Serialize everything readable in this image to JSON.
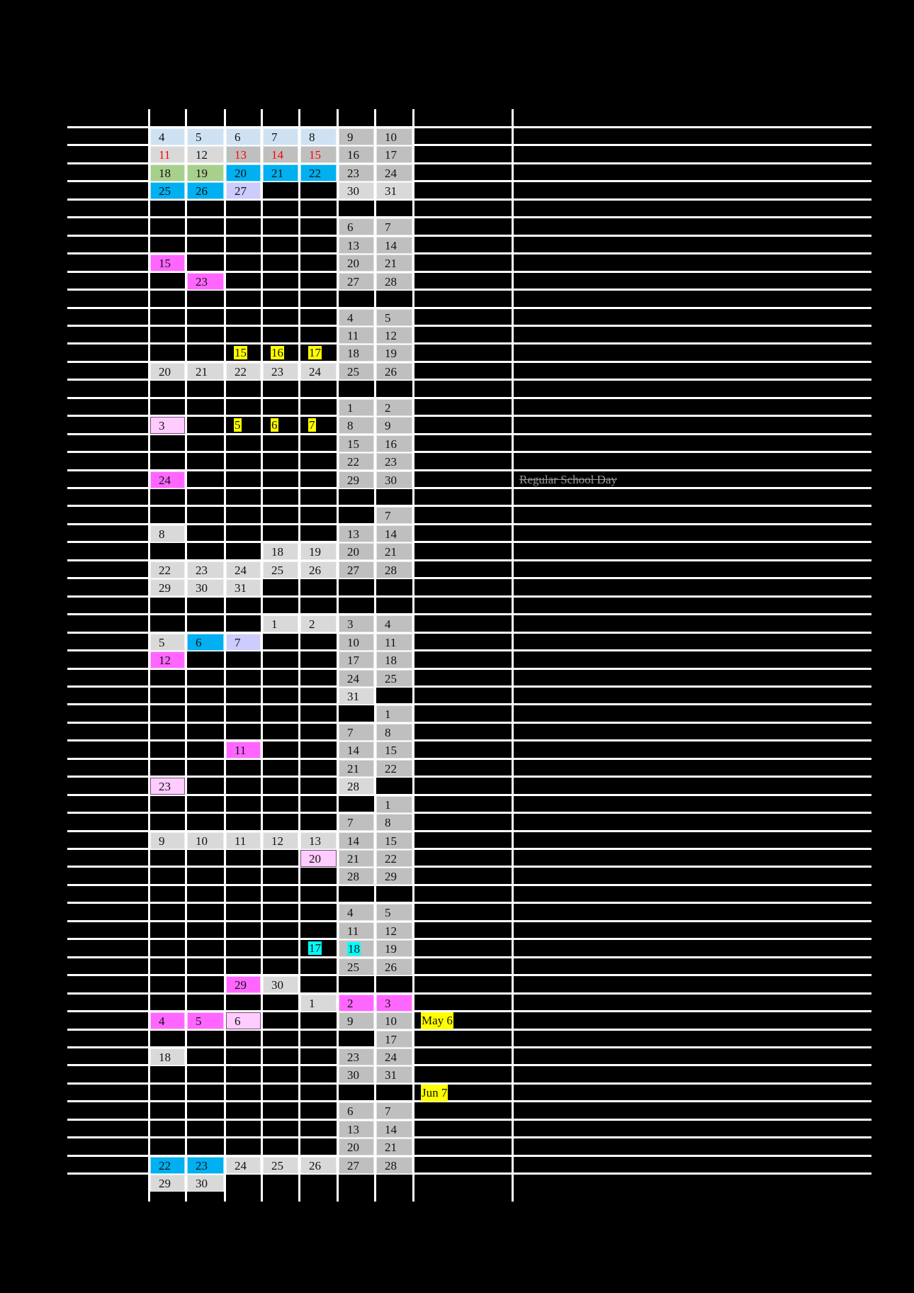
{
  "calendar": {
    "colors": {
      "lightblue": "#cfe2f3",
      "gray": "#bfbfbf",
      "lightgray": "#d9d9d9",
      "green": "#a8d08d",
      "blue": "#00b0f0",
      "lavender": "#ccccff",
      "magenta": "#ff66ff",
      "pink": "#ffccff",
      "red_text": "#ff0000",
      "yellow_highlight": "#ffff00",
      "cyan_highlight": "#00ffff"
    },
    "rows": [
      {
        "cells": [
          {
            "c": 0,
            "d": "4",
            "bg": "lightblue"
          },
          {
            "c": 1,
            "d": "5",
            "bg": "lightblue"
          },
          {
            "c": 2,
            "d": "6",
            "bg": "lightblue"
          },
          {
            "c": 3,
            "d": "7",
            "bg": "lightblue"
          },
          {
            "c": 4,
            "d": "8",
            "bg": "lightblue"
          },
          {
            "c": 5,
            "d": "9",
            "bg": "gray"
          },
          {
            "c": 6,
            "d": "10",
            "bg": "gray"
          }
        ]
      },
      {
        "cells": [
          {
            "c": 0,
            "d": "11",
            "bg": "lightgray",
            "red": true
          },
          {
            "c": 1,
            "d": "12",
            "bg": "lightgray"
          },
          {
            "c": 2,
            "d": "13",
            "bg": "gray",
            "red": true
          },
          {
            "c": 3,
            "d": "14",
            "bg": "gray",
            "red": true
          },
          {
            "c": 4,
            "d": "15",
            "bg": "gray",
            "red": true
          },
          {
            "c": 5,
            "d": "16",
            "bg": "gray"
          },
          {
            "c": 6,
            "d": "17",
            "bg": "gray"
          }
        ]
      },
      {
        "cells": [
          {
            "c": 0,
            "d": "18",
            "bg": "green"
          },
          {
            "c": 1,
            "d": "19",
            "bg": "green"
          },
          {
            "c": 2,
            "d": "20",
            "bg": "blue"
          },
          {
            "c": 3,
            "d": "21",
            "bg": "blue"
          },
          {
            "c": 4,
            "d": "22",
            "bg": "blue"
          },
          {
            "c": 5,
            "d": "23",
            "bg": "gray"
          },
          {
            "c": 6,
            "d": "24",
            "bg": "gray"
          }
        ]
      },
      {
        "cells": [
          {
            "c": 0,
            "d": "25",
            "bg": "blue"
          },
          {
            "c": 1,
            "d": "26",
            "bg": "blue"
          },
          {
            "c": 2,
            "d": "27",
            "bg": "lavender"
          },
          {
            "c": 5,
            "d": "30",
            "bg": "lightgray"
          },
          {
            "c": 6,
            "d": "31",
            "bg": "lightgray"
          }
        ]
      },
      {
        "cells": []
      },
      {
        "cells": [
          {
            "c": 5,
            "d": "6",
            "bg": "gray"
          },
          {
            "c": 6,
            "d": "7",
            "bg": "gray"
          }
        ]
      },
      {
        "cells": [
          {
            "c": 5,
            "d": "13",
            "bg": "gray"
          },
          {
            "c": 6,
            "d": "14",
            "bg": "gray"
          }
        ]
      },
      {
        "cells": [
          {
            "c": 0,
            "d": "15",
            "bg": "magenta"
          },
          {
            "c": 5,
            "d": "20",
            "bg": "gray"
          },
          {
            "c": 6,
            "d": "21",
            "bg": "gray"
          }
        ]
      },
      {
        "cells": [
          {
            "c": 1,
            "d": "23",
            "bg": "magenta"
          },
          {
            "c": 5,
            "d": "27",
            "bg": "gray"
          },
          {
            "c": 6,
            "d": "28",
            "bg": "gray"
          }
        ]
      },
      {
        "cells": []
      },
      {
        "cells": [
          {
            "c": 5,
            "d": "4",
            "bg": "gray"
          },
          {
            "c": 6,
            "d": "5",
            "bg": "gray"
          }
        ]
      },
      {
        "cells": [
          {
            "c": 5,
            "d": "11",
            "bg": "gray"
          },
          {
            "c": 6,
            "d": "12",
            "bg": "gray"
          }
        ]
      },
      {
        "cells": [
          {
            "c": 2,
            "d": "15",
            "bg": "none",
            "hl": "yellow"
          },
          {
            "c": 3,
            "d": "16",
            "bg": "none",
            "hl": "yellow"
          },
          {
            "c": 4,
            "d": "17",
            "bg": "none",
            "hl": "yellow"
          },
          {
            "c": 5,
            "d": "18",
            "bg": "gray"
          },
          {
            "c": 6,
            "d": "19",
            "bg": "gray"
          }
        ]
      },
      {
        "cells": [
          {
            "c": 0,
            "d": "20",
            "bg": "lightgray"
          },
          {
            "c": 1,
            "d": "21",
            "bg": "lightgray"
          },
          {
            "c": 2,
            "d": "22",
            "bg": "lightgray"
          },
          {
            "c": 3,
            "d": "23",
            "bg": "lightgray"
          },
          {
            "c": 4,
            "d": "24",
            "bg": "lightgray"
          },
          {
            "c": 5,
            "d": "25",
            "bg": "gray"
          },
          {
            "c": 6,
            "d": "26",
            "bg": "gray"
          }
        ]
      },
      {
        "cells": []
      },
      {
        "cells": [
          {
            "c": 5,
            "d": "1",
            "bg": "gray"
          },
          {
            "c": 6,
            "d": "2",
            "bg": "gray"
          }
        ]
      },
      {
        "cells": [
          {
            "c": 0,
            "d": "3",
            "bg": "pink"
          },
          {
            "c": 2,
            "d": "5",
            "bg": "none",
            "hl": "yellow"
          },
          {
            "c": 3,
            "d": "6",
            "bg": "none",
            "hl": "yellow"
          },
          {
            "c": 4,
            "d": "7",
            "bg": "none",
            "hl": "yellow"
          },
          {
            "c": 5,
            "d": "8",
            "bg": "gray"
          },
          {
            "c": 6,
            "d": "9",
            "bg": "gray"
          }
        ]
      },
      {
        "cells": [
          {
            "c": 5,
            "d": "15",
            "bg": "gray"
          },
          {
            "c": 6,
            "d": "16",
            "bg": "gray"
          }
        ]
      },
      {
        "cells": [
          {
            "c": 5,
            "d": "22",
            "bg": "gray"
          },
          {
            "c": 6,
            "d": "23",
            "bg": "gray"
          }
        ]
      },
      {
        "cells": [
          {
            "c": 0,
            "d": "24",
            "bg": "magenta"
          },
          {
            "c": 5,
            "d": "29",
            "bg": "gray"
          },
          {
            "c": 6,
            "d": "30",
            "bg": "gray"
          }
        ]
      },
      {
        "cells": []
      },
      {
        "cells": [
          {
            "c": 6,
            "d": "7",
            "bg": "gray"
          }
        ]
      },
      {
        "cells": [
          {
            "c": 0,
            "d": "8",
            "bg": "lightgray"
          },
          {
            "c": 5,
            "d": "13",
            "bg": "gray"
          },
          {
            "c": 6,
            "d": "14",
            "bg": "gray"
          }
        ]
      },
      {
        "cells": [
          {
            "c": 3,
            "d": "18",
            "bg": "lightgray"
          },
          {
            "c": 4,
            "d": "19",
            "bg": "lightgray"
          },
          {
            "c": 5,
            "d": "20",
            "bg": "gray"
          },
          {
            "c": 6,
            "d": "21",
            "bg": "gray"
          }
        ]
      },
      {
        "cells": [
          {
            "c": 0,
            "d": "22",
            "bg": "lightgray"
          },
          {
            "c": 1,
            "d": "23",
            "bg": "lightgray"
          },
          {
            "c": 2,
            "d": "24",
            "bg": "lightgray"
          },
          {
            "c": 3,
            "d": "25",
            "bg": "lightgray"
          },
          {
            "c": 4,
            "d": "26",
            "bg": "lightgray"
          },
          {
            "c": 5,
            "d": "27",
            "bg": "gray"
          },
          {
            "c": 6,
            "d": "28",
            "bg": "gray"
          }
        ]
      },
      {
        "cells": [
          {
            "c": 0,
            "d": "29",
            "bg": "lightgray"
          },
          {
            "c": 1,
            "d": "30",
            "bg": "lightgray"
          },
          {
            "c": 2,
            "d": "31",
            "bg": "lightgray"
          }
        ]
      },
      {
        "cells": []
      },
      {
        "cells": [
          {
            "c": 3,
            "d": "1",
            "bg": "lightgray"
          },
          {
            "c": 4,
            "d": "2",
            "bg": "lightgray"
          },
          {
            "c": 5,
            "d": "3",
            "bg": "gray"
          },
          {
            "c": 6,
            "d": "4",
            "bg": "gray"
          }
        ]
      },
      {
        "cells": [
          {
            "c": 0,
            "d": "5",
            "bg": "lightgray"
          },
          {
            "c": 1,
            "d": "6",
            "bg": "blue"
          },
          {
            "c": 2,
            "d": "7",
            "bg": "lavender"
          },
          {
            "c": 5,
            "d": "10",
            "bg": "gray"
          },
          {
            "c": 6,
            "d": "11",
            "bg": "gray"
          }
        ]
      },
      {
        "cells": [
          {
            "c": 0,
            "d": "12",
            "bg": "magenta"
          },
          {
            "c": 5,
            "d": "17",
            "bg": "gray"
          },
          {
            "c": 6,
            "d": "18",
            "bg": "gray"
          }
        ]
      },
      {
        "cells": [
          {
            "c": 5,
            "d": "24",
            "bg": "gray"
          },
          {
            "c": 6,
            "d": "25",
            "bg": "gray"
          }
        ]
      },
      {
        "cells": [
          {
            "c": 5,
            "d": "31",
            "bg": "lightgray"
          }
        ]
      },
      {
        "cells": [
          {
            "c": 6,
            "d": "1",
            "bg": "gray"
          }
        ]
      },
      {
        "cells": [
          {
            "c": 5,
            "d": "7",
            "bg": "gray"
          },
          {
            "c": 6,
            "d": "8",
            "bg": "gray"
          }
        ]
      },
      {
        "cells": [
          {
            "c": 2,
            "d": "11",
            "bg": "magenta"
          },
          {
            "c": 5,
            "d": "14",
            "bg": "gray"
          },
          {
            "c": 6,
            "d": "15",
            "bg": "gray"
          }
        ]
      },
      {
        "cells": [
          {
            "c": 5,
            "d": "21",
            "bg": "gray"
          },
          {
            "c": 6,
            "d": "22",
            "bg": "gray"
          }
        ]
      },
      {
        "cells": [
          {
            "c": 0,
            "d": "23",
            "bg": "pink"
          },
          {
            "c": 5,
            "d": "28",
            "bg": "lightgray"
          }
        ]
      },
      {
        "cells": [
          {
            "c": 6,
            "d": "1",
            "bg": "gray"
          }
        ]
      },
      {
        "cells": [
          {
            "c": 5,
            "d": "7",
            "bg": "gray"
          },
          {
            "c": 6,
            "d": "8",
            "bg": "gray"
          }
        ]
      },
      {
        "cells": [
          {
            "c": 0,
            "d": "9",
            "bg": "lightgray"
          },
          {
            "c": 1,
            "d": "10",
            "bg": "lightgray"
          },
          {
            "c": 2,
            "d": "11",
            "bg": "lightgray"
          },
          {
            "c": 3,
            "d": "12",
            "bg": "lightgray"
          },
          {
            "c": 4,
            "d": "13",
            "bg": "lightgray"
          },
          {
            "c": 5,
            "d": "14",
            "bg": "gray"
          },
          {
            "c": 6,
            "d": "15",
            "bg": "gray"
          }
        ]
      },
      {
        "cells": [
          {
            "c": 4,
            "d": "20",
            "bg": "pink"
          },
          {
            "c": 5,
            "d": "21",
            "bg": "gray"
          },
          {
            "c": 6,
            "d": "22",
            "bg": "gray"
          }
        ]
      },
      {
        "cells": [
          {
            "c": 5,
            "d": "28",
            "bg": "gray"
          },
          {
            "c": 6,
            "d": "29",
            "bg": "gray"
          }
        ]
      },
      {
        "cells": []
      },
      {
        "cells": [
          {
            "c": 5,
            "d": "4",
            "bg": "gray"
          },
          {
            "c": 6,
            "d": "5",
            "bg": "gray"
          }
        ]
      },
      {
        "cells": [
          {
            "c": 5,
            "d": "11",
            "bg": "gray"
          },
          {
            "c": 6,
            "d": "12",
            "bg": "gray"
          }
        ]
      },
      {
        "cells": [
          {
            "c": 4,
            "d": "17",
            "bg": "none",
            "hl": "cyan"
          },
          {
            "c": 5,
            "d": "18",
            "bg": "gray",
            "hl": "cyan"
          },
          {
            "c": 6,
            "d": "19",
            "bg": "gray"
          }
        ]
      },
      {
        "cells": [
          {
            "c": 5,
            "d": "25",
            "bg": "gray"
          },
          {
            "c": 6,
            "d": "26",
            "bg": "gray"
          }
        ]
      },
      {
        "cells": [
          {
            "c": 2,
            "d": "29",
            "bg": "magenta"
          },
          {
            "c": 3,
            "d": "30",
            "bg": "lightgray"
          }
        ]
      },
      {
        "cells": [
          {
            "c": 4,
            "d": "1",
            "bg": "lightgray"
          },
          {
            "c": 5,
            "d": "2",
            "bg": "magenta"
          },
          {
            "c": 6,
            "d": "3",
            "bg": "magenta"
          }
        ]
      },
      {
        "cells": [
          {
            "c": 0,
            "d": "4",
            "bg": "magenta"
          },
          {
            "c": 1,
            "d": "5",
            "bg": "magenta"
          },
          {
            "c": 2,
            "d": "6",
            "bg": "pink"
          },
          {
            "c": 5,
            "d": "9",
            "bg": "gray"
          },
          {
            "c": 6,
            "d": "10",
            "bg": "gray"
          }
        ]
      },
      {
        "cells": [
          {
            "c": 6,
            "d": "17",
            "bg": "gray"
          }
        ]
      },
      {
        "cells": [
          {
            "c": 0,
            "d": "18",
            "bg": "lightgray"
          },
          {
            "c": 5,
            "d": "23",
            "bg": "gray"
          },
          {
            "c": 6,
            "d": "24",
            "bg": "gray"
          }
        ]
      },
      {
        "cells": [
          {
            "c": 5,
            "d": "30",
            "bg": "gray"
          },
          {
            "c": 6,
            "d": "31",
            "bg": "gray"
          }
        ]
      },
      {
        "cells": []
      },
      {
        "cells": [
          {
            "c": 5,
            "d": "6",
            "bg": "gray"
          },
          {
            "c": 6,
            "d": "7",
            "bg": "gray"
          }
        ]
      },
      {
        "cells": [
          {
            "c": 5,
            "d": "13",
            "bg": "gray"
          },
          {
            "c": 6,
            "d": "14",
            "bg": "gray"
          }
        ]
      },
      {
        "cells": [
          {
            "c": 5,
            "d": "20",
            "bg": "gray"
          },
          {
            "c": 6,
            "d": "21",
            "bg": "gray"
          }
        ]
      },
      {
        "cells": [
          {
            "c": 0,
            "d": "22",
            "bg": "blue"
          },
          {
            "c": 1,
            "d": "23",
            "bg": "blue"
          },
          {
            "c": 2,
            "d": "24",
            "bg": "lightgray"
          },
          {
            "c": 3,
            "d": "25",
            "bg": "lightgray"
          },
          {
            "c": 4,
            "d": "26",
            "bg": "lightgray"
          },
          {
            "c": 5,
            "d": "27",
            "bg": "gray"
          },
          {
            "c": 6,
            "d": "28",
            "bg": "gray"
          }
        ]
      },
      {
        "cells": [
          {
            "c": 0,
            "d": "29",
            "bg": "lightgray"
          },
          {
            "c": 1,
            "d": "30",
            "bg": "lightgray"
          }
        ]
      }
    ],
    "notes": [
      {
        "row": 19,
        "text": "Regular School Day",
        "style": "strike"
      },
      {
        "row": 49,
        "text": "May 6",
        "style": "yellow"
      },
      {
        "row": 53,
        "text": "Jun 7",
        "style": "yellow"
      }
    ]
  }
}
